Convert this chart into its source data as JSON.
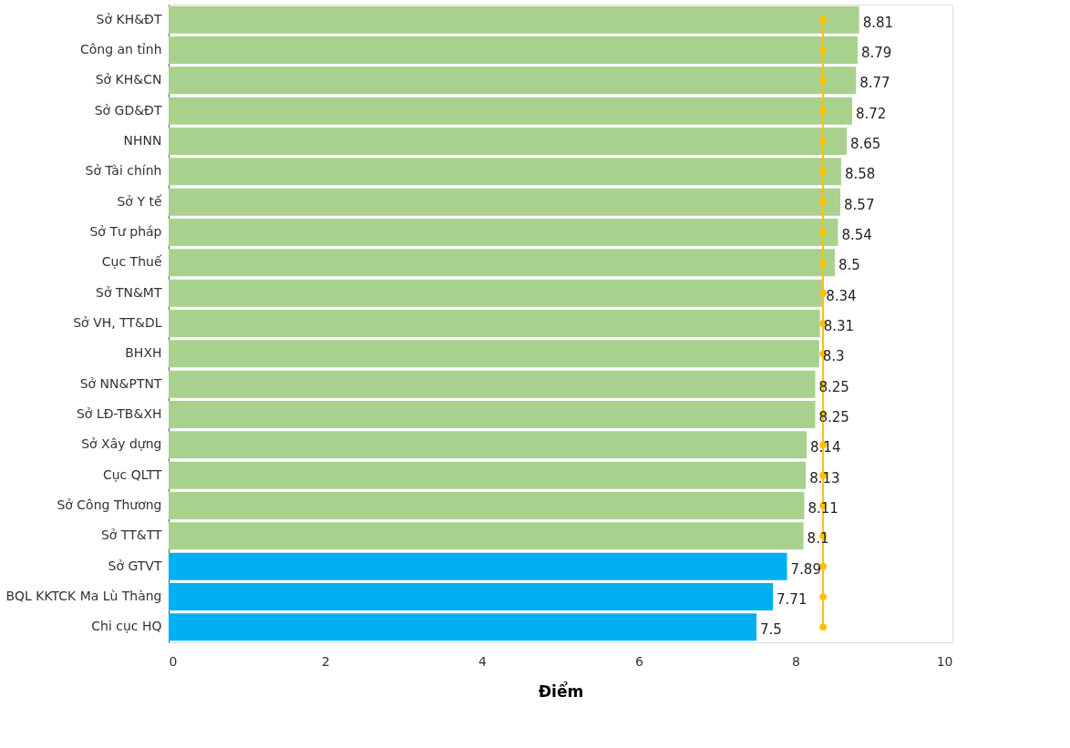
{
  "chart_data": {
    "type": "bar",
    "orientation": "horizontal",
    "xlabel": "Điểm",
    "xlim": [
      0,
      10
    ],
    "xticks": [
      0,
      2,
      4,
      6,
      8,
      10
    ],
    "grid": false,
    "categories": [
      "Sở KH&ĐT",
      "Công an tỉnh",
      "Sở KH&CN",
      "Sở GD&ĐT",
      "NHNN",
      "Sở Tài chính",
      "Sở Y tế",
      "Sở Tư pháp",
      "Cục Thuế",
      "Sở TN&MT",
      "Sở VH, TT&DL",
      "BHXH",
      "Sở NN&PTNT",
      "Sở LĐ-TB&XH",
      "Sở Xây dựng",
      "Cục QLTT",
      "Sở Công Thương",
      "Sở TT&TT",
      "Sở GTVT",
      "BQL KKTCK Ma Lù Thàng",
      "Chi cục HQ"
    ],
    "series": [
      {
        "values": [
          8.81,
          8.79,
          8.77,
          8.72,
          8.65,
          8.58,
          8.57,
          8.54,
          8.5,
          8.34,
          8.31,
          8.3,
          8.25,
          8.25,
          8.14,
          8.13,
          8.11,
          8.1,
          7.89,
          7.71,
          7.5
        ],
        "colors": [
          "#a9d18e",
          "#a9d18e",
          "#a9d18e",
          "#a9d18e",
          "#a9d18e",
          "#a9d18e",
          "#a9d18e",
          "#a9d18e",
          "#a9d18e",
          "#a9d18e",
          "#a9d18e",
          "#a9d18e",
          "#a9d18e",
          "#a9d18e",
          "#a9d18e",
          "#a9d18e",
          "#a9d18e",
          "#a9d18e",
          "#00b0f0",
          "#00b0f0",
          "#00b0f0"
        ],
        "value_labels": [
          "8.81",
          "8.79",
          "8.77",
          "8.72",
          "8.65",
          "8.58",
          "8.57",
          "8.54",
          "8.5",
          "8.34",
          "8.31",
          "8.3",
          "8.25",
          "8.25",
          "8.14",
          "8.13",
          "8.11",
          "8.1",
          "7.89",
          "7.71",
          "7.5"
        ]
      },
      {
        "type": "line",
        "color": "#ffc000",
        "marker": "circle",
        "values": [
          8.35,
          8.35,
          8.35,
          8.35,
          8.35,
          8.35,
          8.35,
          8.35,
          8.35,
          8.35,
          8.35,
          8.35,
          8.35,
          8.35,
          8.35,
          8.35,
          8.35,
          8.35,
          8.35,
          8.35,
          8.35
        ]
      }
    ]
  }
}
